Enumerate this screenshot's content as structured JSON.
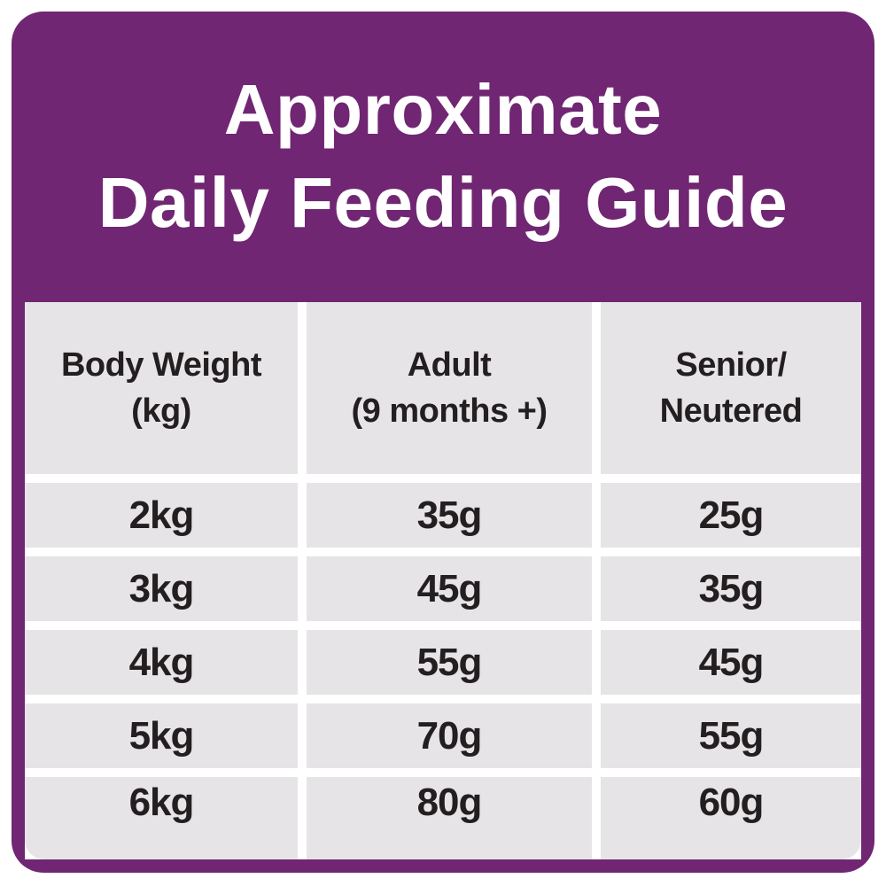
{
  "title": {
    "line1": "Approximate",
    "line2": "Daily Feeding Guide"
  },
  "table": {
    "headers": [
      {
        "line1": "Body Weight",
        "line2": "(kg)"
      },
      {
        "line1": "Adult",
        "line2": "(9 months +)"
      },
      {
        "line1": "Senior/",
        "line2": "Neutered"
      }
    ],
    "rows": [
      [
        "2kg",
        "35g",
        "25g"
      ],
      [
        "3kg",
        "45g",
        "35g"
      ],
      [
        "4kg",
        "55g",
        "45g"
      ],
      [
        "5kg",
        "70g",
        "55g"
      ],
      [
        "6kg",
        "80g",
        "60g"
      ]
    ]
  },
  "chart_data": {
    "type": "table",
    "title": "Approximate Daily Feeding Guide",
    "columns": [
      "Body Weight (kg)",
      "Adult (9 months +)",
      "Senior/Neutered"
    ],
    "rows": [
      [
        "2kg",
        "35g",
        "25g"
      ],
      [
        "3kg",
        "45g",
        "35g"
      ],
      [
        "4kg",
        "55g",
        "45g"
      ],
      [
        "5kg",
        "70g",
        "55g"
      ],
      [
        "6kg",
        "80g",
        "60g"
      ]
    ]
  },
  "colors": {
    "brand_purple": "#702672",
    "cell_gray": "#E6E4E6",
    "text_dark": "#231F20",
    "gutter_white": "#FFFFFF"
  }
}
